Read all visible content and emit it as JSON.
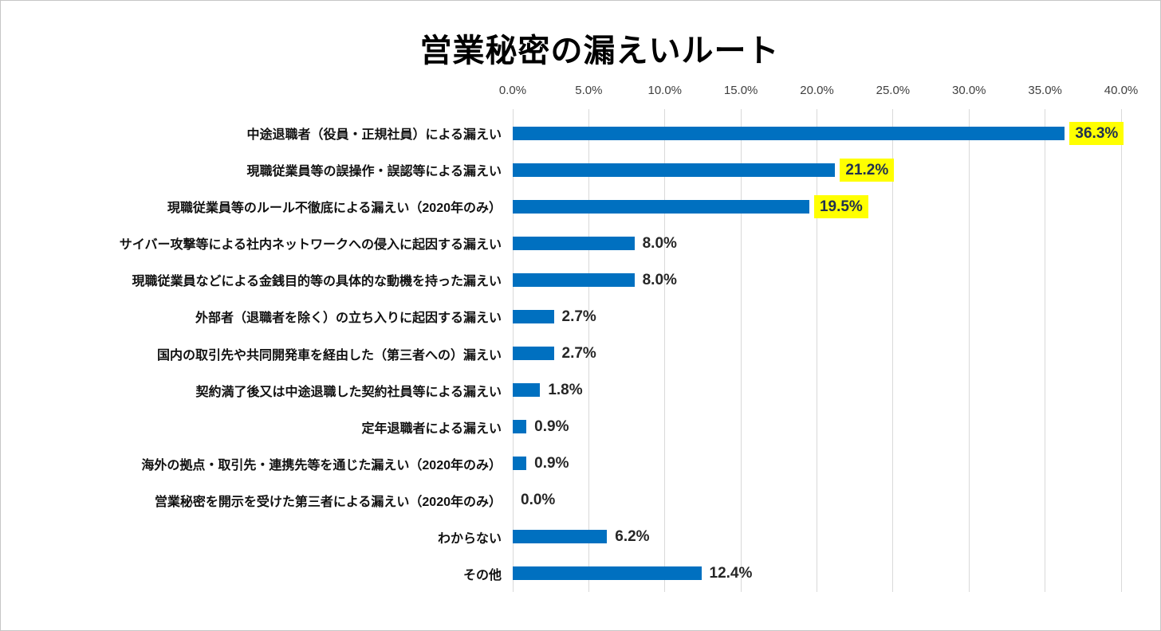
{
  "colors": {
    "bar": "#0070C0",
    "highlight_background": "#FFFF00",
    "gridline": "#D9D9D9",
    "tick_text": "#404040",
    "label_text": "#111111",
    "value_text": "#262626",
    "canvas_border": "#C6C6C6",
    "background": "#FFFFFF"
  },
  "chart_data": {
    "type": "bar",
    "orientation": "horizontal",
    "title": "営業秘密の漏えいルート",
    "categories": [
      "中途退職者（役員・正規社員）による漏えい",
      "現職従業員等の誤操作・誤認等による漏えい",
      "現職従業員等のルール不徹底による漏えい（2020年のみ）",
      "サイバー攻撃等による社内ネットワークへの侵入に起因する漏えい",
      "現職従業員などによる金銭目的等の具体的な動機を持った漏えい",
      "外部者（退職者を除く）の立ち入りに起因する漏えい",
      "国内の取引先や共同開発車を経由した（第三者への）漏えい",
      "契約満了後又は中途退職した契約社員等による漏えい",
      "定年退職者による漏えい",
      "海外の拠点・取引先・連携先等を通じた漏えい（2020年のみ）",
      "営業秘密を開示を受けた第三者による漏えい（2020年のみ）",
      "わからない",
      "その他"
    ],
    "values": [
      36.3,
      21.2,
      19.5,
      8.0,
      8.0,
      2.7,
      2.7,
      1.8,
      0.9,
      0.9,
      0.0,
      6.2,
      12.4
    ],
    "value_labels": [
      "36.3%",
      "21.2%",
      "19.5%",
      "8.0%",
      "8.0%",
      "2.7%",
      "2.7%",
      "1.8%",
      "0.9%",
      "0.9%",
      "0.0%",
      "6.2%",
      "12.4%"
    ],
    "highlighted_indices": [
      0,
      1,
      2
    ],
    "axis": {
      "position": "top",
      "min": 0,
      "max": 40,
      "step": 5,
      "tick_labels": [
        "0.0%",
        "5.0%",
        "10.0%",
        "15.0%",
        "20.0%",
        "25.0%",
        "30.0%",
        "35.0%",
        "40.0%"
      ]
    },
    "grid": true,
    "legend": false
  }
}
